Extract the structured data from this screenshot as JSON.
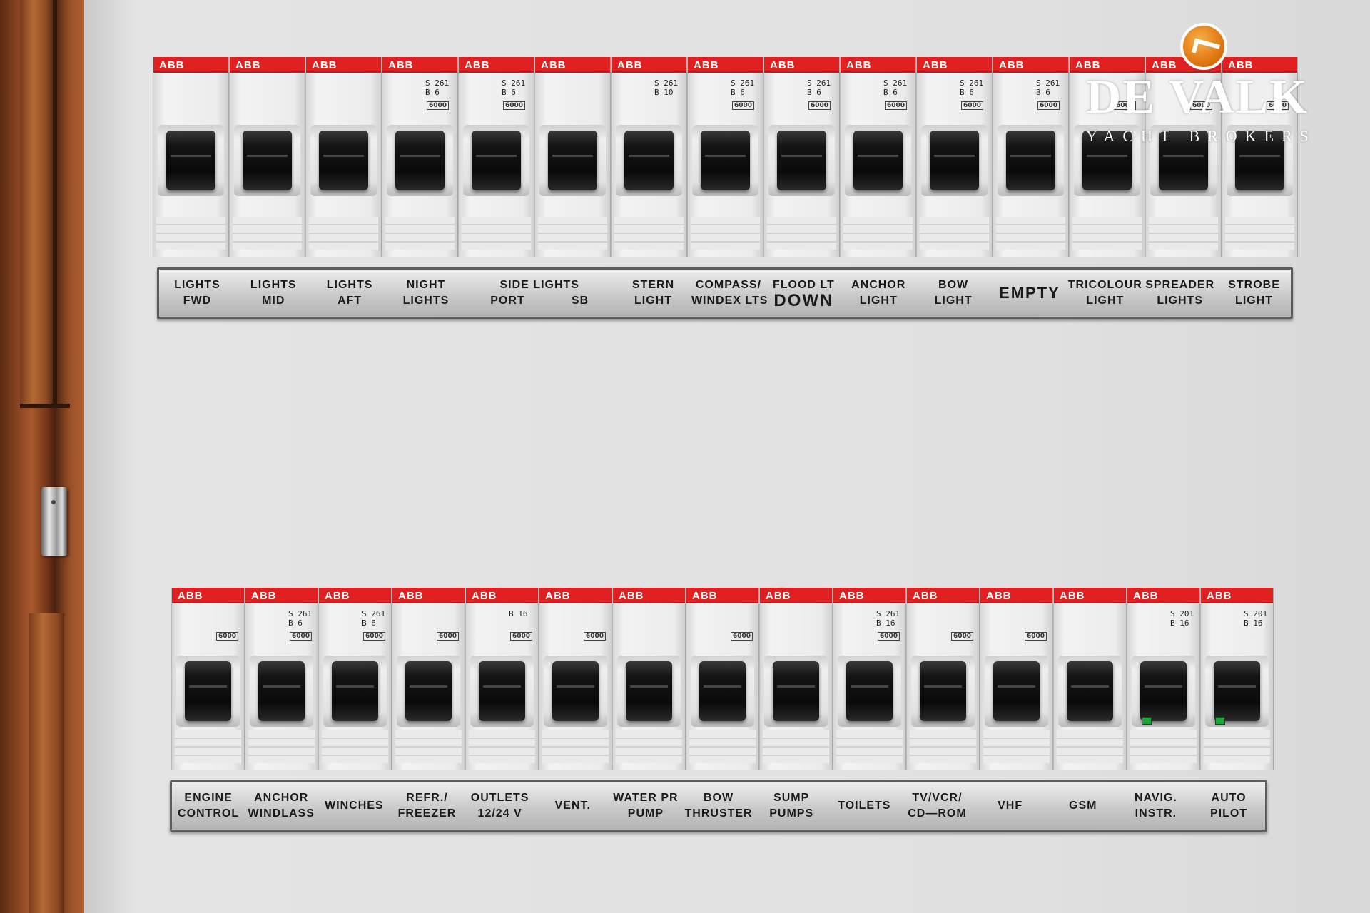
{
  "watermark": {
    "title": "DE VALK",
    "subtitle": "YACHT BROKERS",
    "icon": "bird-logo-icon",
    "accent_color": "#e17812"
  },
  "breakers": {
    "brand": "ABB",
    "brand_color": "#e02020",
    "top_row": [
      {
        "model": "",
        "rating": ""
      },
      {
        "model": "",
        "rating": ""
      },
      {
        "model": "",
        "rating": ""
      },
      {
        "model": "S 261\nB 6",
        "rating": "6000"
      },
      {
        "model": "S 261\nB 6",
        "rating": "6000"
      },
      {
        "model": "",
        "rating": ""
      },
      {
        "model": "S 261\nB 10",
        "rating": ""
      },
      {
        "model": "S 261\nB 6",
        "rating": "6000"
      },
      {
        "model": "S 261\nB 6",
        "rating": "6000"
      },
      {
        "model": "S 261\nB 6",
        "rating": "6000"
      },
      {
        "model": "S 261\nB 6",
        "rating": "6000"
      },
      {
        "model": "S 261\nB 6",
        "rating": "6000"
      },
      {
        "model": "",
        "rating": "6000"
      },
      {
        "model": "",
        "rating": "6000"
      },
      {
        "model": "",
        "rating": "6000"
      }
    ],
    "bottom_row": [
      {
        "model": "",
        "rating": "6000",
        "led": false
      },
      {
        "model": "S 261\nB 6",
        "rating": "6000",
        "led": false
      },
      {
        "model": "S 261\nB 6",
        "rating": "6000",
        "led": false
      },
      {
        "model": "",
        "rating": "6000",
        "led": false
      },
      {
        "model": "B 16",
        "rating": "6000",
        "led": false
      },
      {
        "model": "",
        "rating": "6000",
        "led": false
      },
      {
        "model": "",
        "rating": "",
        "led": false
      },
      {
        "model": "",
        "rating": "6000",
        "led": false
      },
      {
        "model": "",
        "rating": "",
        "led": false
      },
      {
        "model": "S 261\nB 16",
        "rating": "6000",
        "led": false
      },
      {
        "model": "",
        "rating": "6000",
        "led": false
      },
      {
        "model": "",
        "rating": "6000",
        "led": false
      },
      {
        "model": "",
        "rating": "",
        "led": false
      },
      {
        "model": "S 201\nB 16",
        "rating": "",
        "led": true
      },
      {
        "model": "S 201\nB 16",
        "rating": "",
        "led": true
      }
    ]
  },
  "top_labels": [
    {
      "line1": "LIGHTS",
      "line2": "FWD"
    },
    {
      "line1": "LIGHTS",
      "line2": "MID"
    },
    {
      "line1": "LIGHTS",
      "line2": "AFT"
    },
    {
      "line1": "NIGHT",
      "line2": "LIGHTS"
    },
    {
      "line1": "SIDE LIGHTS",
      "line2": "PORT            SB"
    },
    {
      "line1": "STERN",
      "line2": "LIGHT"
    },
    {
      "line1": "COMPASS/",
      "line2": "WINDEX LTS"
    },
    {
      "line1": "FLOOD LT",
      "line2": "DOWN"
    },
    {
      "line1": "ANCHOR",
      "line2": "LIGHT"
    },
    {
      "line1": "BOW",
      "line2": "LIGHT"
    },
    {
      "line1": "EMPTY",
      "line2": ""
    },
    {
      "line1": "TRICOLOUR",
      "line2": "LIGHT"
    },
    {
      "line1": "SPREADER",
      "line2": "LIGHTS"
    },
    {
      "line1": "STROBE",
      "line2": "LIGHT"
    }
  ],
  "bottom_labels": [
    {
      "line1": "ENGINE",
      "line2": "CONTROL"
    },
    {
      "line1": "ANCHOR",
      "line2": "WINDLASS"
    },
    {
      "line1": "WINCHES",
      "line2": ""
    },
    {
      "line1": "REFR./",
      "line2": "FREEZER"
    },
    {
      "line1": "OUTLETS",
      "line2": "12/24 V"
    },
    {
      "line1": "VENT.",
      "line2": ""
    },
    {
      "line1": "WATER PR",
      "line2": "PUMP"
    },
    {
      "line1": "BOW",
      "line2": "THRUSTER"
    },
    {
      "line1": "SUMP",
      "line2": "PUMPS"
    },
    {
      "line1": "TOILETS",
      "line2": ""
    },
    {
      "line1": "TV/VCR/",
      "line2": "CD—ROM"
    },
    {
      "line1": "VHF",
      "line2": ""
    },
    {
      "line1": "GSM",
      "line2": ""
    },
    {
      "line1": "NAVIG.",
      "line2": "INSTR."
    },
    {
      "line1": "AUTO",
      "line2": "PILOT"
    }
  ]
}
